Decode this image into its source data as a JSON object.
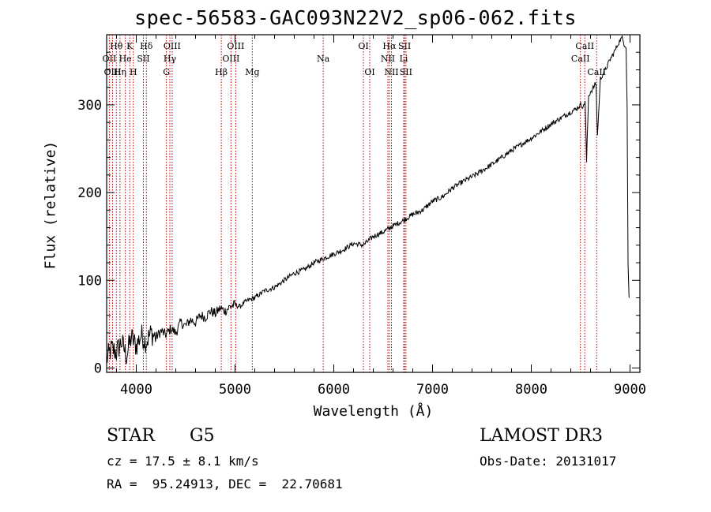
{
  "chart_data": {
    "type": "line",
    "title": "spec-56583-GAC093N22V2_sp06-062.fits",
    "xlabel": "Wavelength (Å)",
    "ylabel": "Flux (relative)",
    "xlim": [
      3700,
      9100
    ],
    "ylim": [
      -5,
      380
    ],
    "x_ticks": [
      4000,
      5000,
      6000,
      7000,
      8000,
      9000
    ],
    "y_ticks": [
      0,
      100,
      200,
      300
    ],
    "grid": false,
    "series": [
      {
        "name": "spectrum",
        "x": [
          3700,
          3750,
          3800,
          3850,
          3900,
          3950,
          4000,
          4050,
          4100,
          4150,
          4200,
          4250,
          4300,
          4350,
          4400,
          4450,
          4500,
          4550,
          4600,
          4650,
          4700,
          4750,
          4800,
          4850,
          4900,
          4950,
          5000,
          5050,
          5100,
          5150,
          5200,
          5300,
          5400,
          5500,
          5600,
          5700,
          5800,
          5900,
          6000,
          6100,
          6200,
          6300,
          6400,
          6500,
          6600,
          6700,
          6800,
          6900,
          7000,
          7100,
          7200,
          7300,
          7400,
          7500,
          7600,
          7700,
          7800,
          7900,
          8000,
          8100,
          8200,
          8300,
          8400,
          8450,
          8500,
          8530,
          8545,
          8560,
          8580,
          8600,
          8620,
          8640,
          8655,
          8670,
          8700,
          8750,
          8800,
          8830,
          8860,
          8880,
          8900,
          8920,
          8940,
          8960,
          8970,
          8980,
          8990
        ],
        "y": [
          10,
          22,
          18,
          30,
          14,
          35,
          25,
          38,
          30,
          40,
          35,
          42,
          38,
          45,
          40,
          52,
          48,
          55,
          52,
          60,
          58,
          65,
          62,
          68,
          65,
          70,
          72,
          70,
          75,
          78,
          80,
          88,
          92,
          100,
          108,
          112,
          120,
          125,
          130,
          135,
          142,
          140,
          150,
          155,
          162,
          168,
          175,
          180,
          190,
          195,
          205,
          212,
          218,
          225,
          232,
          240,
          248,
          255,
          262,
          270,
          278,
          285,
          292,
          295,
          300,
          298,
          305,
          235,
          310,
          315,
          318,
          322,
          325,
          265,
          330,
          340,
          352,
          358,
          365,
          370,
          374,
          376,
          370,
          365,
          300,
          120,
          80
        ]
      }
    ],
    "lines": [
      {
        "label": "Hθ",
        "x": 3798,
        "row": 1
      },
      {
        "label": "OII",
        "x": 3727,
        "row": 2
      },
      {
        "label": "OIII",
        "x": 3760,
        "row": 3
      },
      {
        "label": "He",
        "x": 3889,
        "row": 2
      },
      {
        "label": "Hη",
        "x": 3835,
        "row": 3
      },
      {
        "label": "K",
        "x": 3934,
        "row": 1
      },
      {
        "label": "H",
        "x": 3970,
        "row": 3
      },
      {
        "label": "SII",
        "x": 4072,
        "row": 2
      },
      {
        "label": "Hδ",
        "x": 4102,
        "row": 1
      },
      {
        "label": "OIII",
        "x": 4363,
        "row": 1
      },
      {
        "label": "Hγ",
        "x": 4340,
        "row": 2
      },
      {
        "label": "G",
        "x": 4305,
        "row": 3
      },
      {
        "label": "OIII",
        "x": 5007,
        "row": 1
      },
      {
        "label": "OIII",
        "x": 4959,
        "row": 2
      },
      {
        "label": "Hβ",
        "x": 4861,
        "row": 3
      },
      {
        "label": "Mg",
        "x": 5175,
        "row": 3
      },
      {
        "label": "Na",
        "x": 5893,
        "row": 2
      },
      {
        "label": "OI",
        "x": 6300,
        "row": 1
      },
      {
        "label": "OI",
        "x": 6364,
        "row": 3
      },
      {
        "label": "Hα",
        "x": 6563,
        "row": 1
      },
      {
        "label": "NII",
        "x": 6548,
        "row": 2
      },
      {
        "label": "NII",
        "x": 6584,
        "row": 3
      },
      {
        "label": "SII",
        "x": 6717,
        "row": 1
      },
      {
        "label": "Li",
        "x": 6708,
        "row": 2
      },
      {
        "label": "SII",
        "x": 6731,
        "row": 3
      },
      {
        "label": "CaII",
        "x": 8542,
        "row": 1
      },
      {
        "label": "CaII",
        "x": 8498,
        "row": 2
      },
      {
        "label": "CaII",
        "x": 8662,
        "row": 3
      }
    ]
  },
  "info": {
    "object_class": "STAR",
    "subclass": "G5",
    "survey": "LAMOST DR3",
    "cz": "cz = 17.5 ± 8.1 km/s",
    "obs_date": "Obs-Date: 20131017",
    "coords": "RA =  95.24913, DEC =  22.70681"
  },
  "colors": {
    "spectrum": "#000000",
    "line_marker": "#b00000",
    "background": "#ffffff"
  }
}
